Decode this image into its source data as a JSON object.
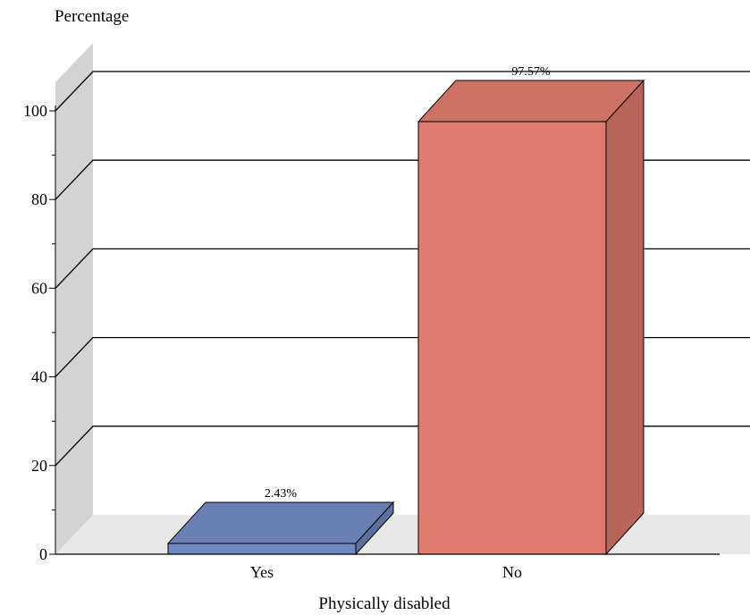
{
  "chart_data": {
    "type": "bar",
    "style": "3d",
    "categories": [
      "Yes",
      "No"
    ],
    "values": [
      2.43,
      97.57
    ],
    "data_labels": [
      "2.43%",
      "97.57%"
    ],
    "colors": [
      "#7289c0",
      "#df7b6e"
    ],
    "ylabel": "Percentage",
    "xlabel": "Physically disabled",
    "ylim": [
      0,
      100
    ],
    "yticks": [
      0,
      20,
      40,
      60,
      80,
      100
    ],
    "grid": true,
    "legend": "none"
  }
}
